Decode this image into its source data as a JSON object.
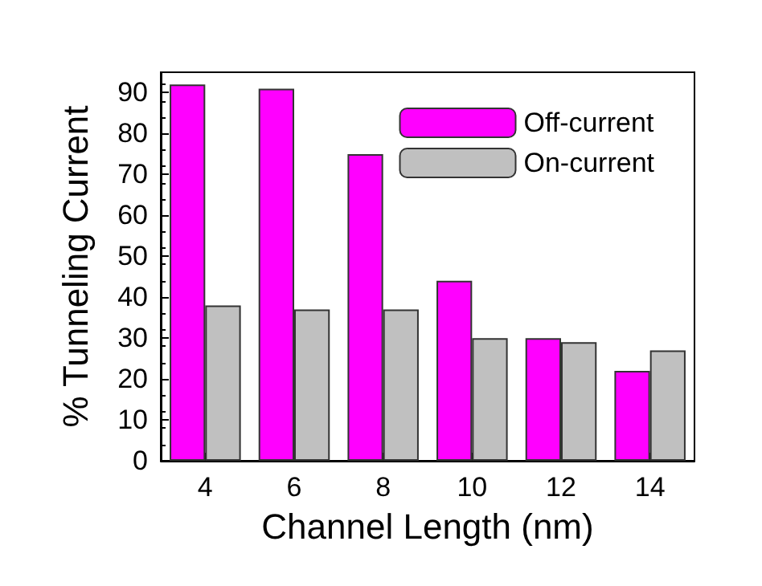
{
  "chart_data": {
    "type": "bar",
    "xlabel": "Channel Length (nm)",
    "ylabel": "% Tunneling Current",
    "categories": [
      "4",
      "6",
      "8",
      "10",
      "12",
      "14"
    ],
    "series": [
      {
        "name": "Off-current",
        "color": "#ff00ff",
        "values": [
          92,
          91,
          75,
          44,
          30,
          22
        ]
      },
      {
        "name": "On-current",
        "color": "#c0c0c0",
        "values": [
          38,
          37,
          37,
          30,
          29,
          27
        ]
      }
    ],
    "ylim": [
      0,
      95
    ],
    "yticks": [
      0,
      10,
      20,
      30,
      40,
      50,
      60,
      70,
      80,
      90
    ],
    "grid": false,
    "legend": "top right"
  }
}
